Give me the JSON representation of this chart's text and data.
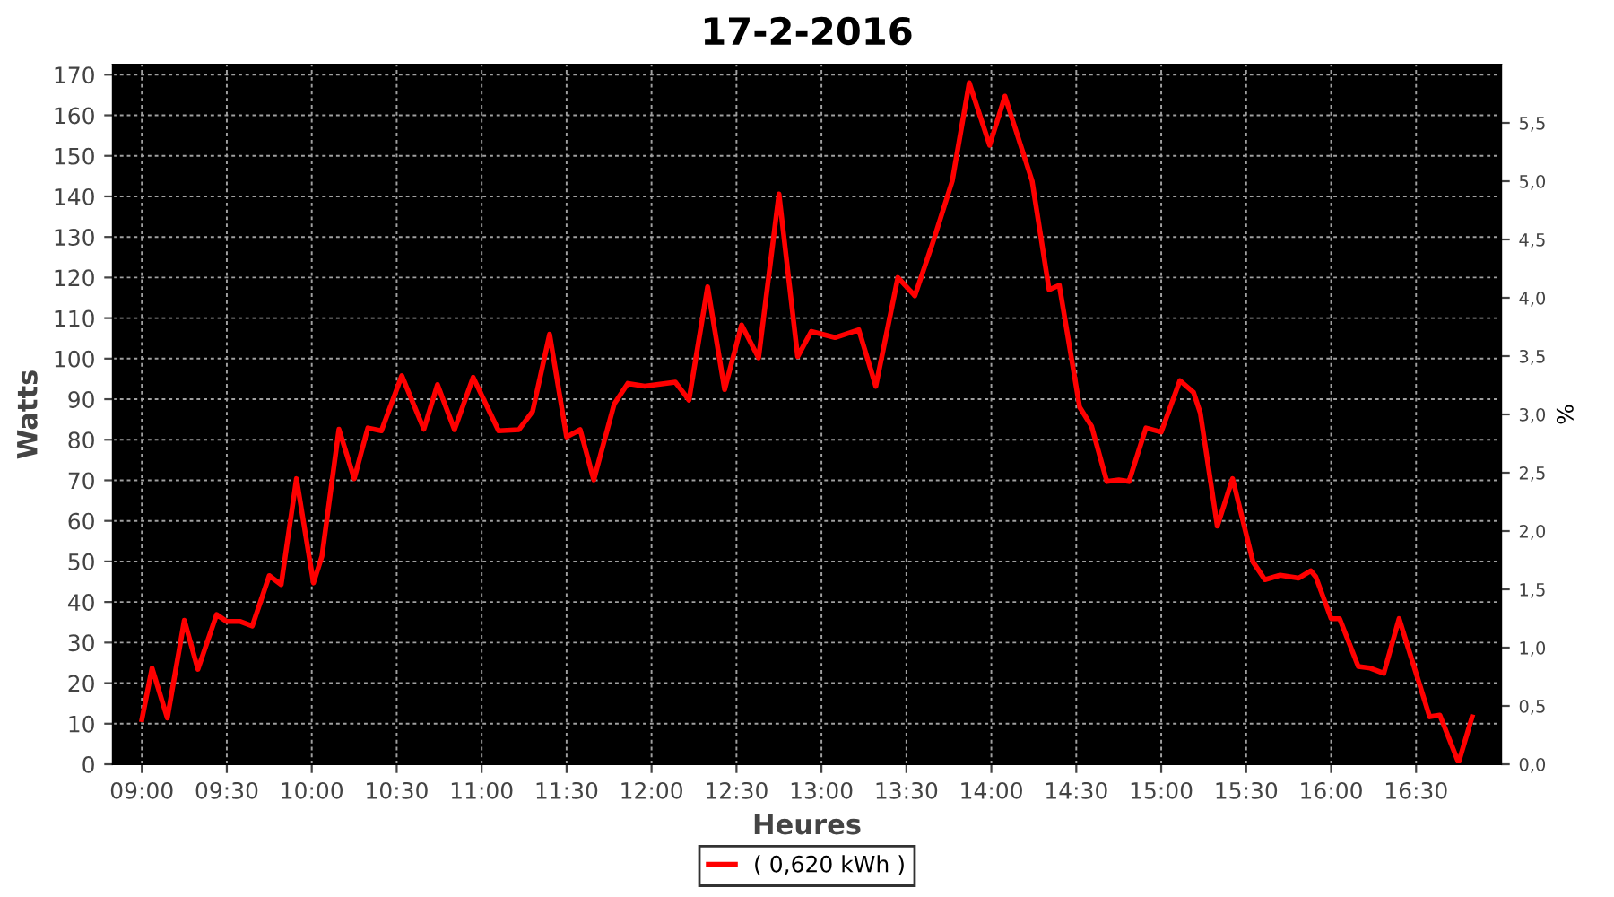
{
  "chart_data": {
    "type": "line",
    "title": "17-2-2016",
    "xlabel": "Heures",
    "ylabel": "Watts",
    "y2label": "%",
    "xlim": [
      8.83,
      17.0
    ],
    "xticks": [
      {
        "value": 9.0,
        "label": "09:00"
      },
      {
        "value": 9.5,
        "label": "09:30"
      },
      {
        "value": 10.0,
        "label": "10:00"
      },
      {
        "value": 10.5,
        "label": "10:30"
      },
      {
        "value": 11.0,
        "label": "11:00"
      },
      {
        "value": 11.5,
        "label": "11:30"
      },
      {
        "value": 12.0,
        "label": "12:00"
      },
      {
        "value": 12.5,
        "label": "12:30"
      },
      {
        "value": 13.0,
        "label": "13:00"
      },
      {
        "value": 13.5,
        "label": "13:30"
      },
      {
        "value": 14.0,
        "label": "14:00"
      },
      {
        "value": 14.5,
        "label": "14:30"
      },
      {
        "value": 15.0,
        "label": "15:00"
      },
      {
        "value": 15.5,
        "label": "15:30"
      },
      {
        "value": 16.0,
        "label": "16:00"
      },
      {
        "value": 16.5,
        "label": "16:30"
      }
    ],
    "ylim": [
      0,
      172.5
    ],
    "yticks": [
      0,
      10,
      20,
      30,
      40,
      50,
      60,
      70,
      80,
      90,
      100,
      110,
      120,
      130,
      140,
      150,
      160,
      170
    ],
    "y2lim": [
      0,
      6.0
    ],
    "y2ticks": [
      {
        "value": 0,
        "label": "0,0"
      },
      {
        "value": 0.5,
        "label": "0,5"
      },
      {
        "value": 1.0,
        "label": "1,0"
      },
      {
        "value": 1.5,
        "label": "1,5"
      },
      {
        "value": 2.0,
        "label": "2,0"
      },
      {
        "value": 2.5,
        "label": "2,5"
      },
      {
        "value": 3.0,
        "label": "3,0"
      },
      {
        "value": 3.5,
        "label": "3,5"
      },
      {
        "value": 4.0,
        "label": "4,0"
      },
      {
        "value": 4.5,
        "label": "4,5"
      },
      {
        "value": 5.0,
        "label": "5,0"
      },
      {
        "value": 5.5,
        "label": "5,5"
      }
    ],
    "grid": true,
    "legend": "bottom",
    "marker": "none",
    "line_style": "solid",
    "series": [
      {
        "name": "( 0,620 kWh )",
        "color": "#ff0000",
        "x": [
          9.0,
          9.06,
          9.15,
          9.25,
          9.33,
          9.44,
          9.5,
          9.58,
          9.65,
          9.75,
          9.82,
          9.91,
          10.01,
          10.06,
          10.16,
          10.25,
          10.33,
          10.41,
          10.53,
          10.66,
          10.74,
          10.84,
          10.95,
          11.1,
          11.22,
          11.3,
          11.4,
          11.5,
          11.58,
          11.66,
          11.78,
          11.86,
          11.96,
          12.14,
          12.22,
          12.33,
          12.43,
          12.53,
          12.63,
          12.75,
          12.86,
          12.94,
          13.08,
          13.22,
          13.32,
          13.45,
          13.55,
          13.66,
          13.77,
          13.87,
          13.99,
          14.08,
          14.24,
          14.34,
          14.4,
          14.52,
          14.59,
          14.68,
          14.75,
          14.81,
          14.91,
          15.0,
          15.11,
          15.19,
          15.23,
          15.33,
          15.42,
          15.54,
          15.61,
          15.7,
          15.81,
          15.88,
          15.91,
          16.0,
          16.05,
          16.16,
          16.23,
          16.31,
          16.4,
          16.58,
          16.64,
          16.75,
          16.83
        ],
        "values": [
          11,
          23.7,
          11.4,
          35.5,
          23.4,
          36.9,
          35.2,
          35.2,
          34.1,
          46.5,
          44.3,
          70.4,
          44.7,
          51.3,
          82.6,
          70.4,
          82.9,
          82.2,
          95.8,
          82.6,
          93.6,
          82.5,
          95.4,
          82.2,
          82.5,
          87,
          106,
          80.7,
          82.5,
          70.1,
          88.8,
          93.9,
          93.2,
          94.2,
          89.8,
          117.7,
          92.4,
          108.3,
          100.2,
          140.6,
          100.5,
          106.7,
          105.2,
          107.1,
          93.2,
          120,
          115.5,
          129.2,
          143.8,
          168,
          152.6,
          164.7,
          143.8,
          117,
          118.1,
          88,
          83.3,
          69.7,
          70.1,
          69.7,
          82.9,
          81.9,
          94.6,
          91.7,
          86.6,
          58.7,
          70.4,
          49.9,
          45.5,
          46.6,
          45.9,
          47.7,
          46.2,
          35.9,
          35.9,
          24.1,
          23.7,
          22.4,
          35.9,
          11.7,
          12.1,
          0.4,
          11.7
        ]
      }
    ]
  }
}
